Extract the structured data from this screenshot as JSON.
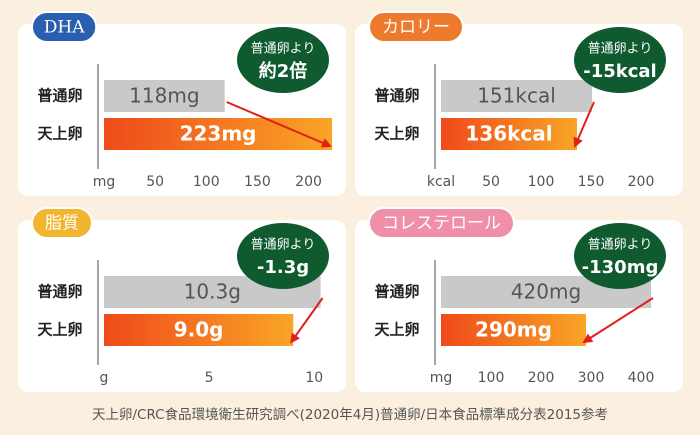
{
  "chart_data": [
    {
      "type": "bar",
      "title": "DHA",
      "title_color": "#2a5fb0",
      "categories": [
        "普通卵",
        "天上卵"
      ],
      "values": [
        118,
        223
      ],
      "value_labels": [
        "118mg",
        "223mg"
      ],
      "colors": [
        "#c9c9c9",
        "#f05a1c"
      ],
      "xlim": [
        0,
        220
      ],
      "xticks": [
        {
          "value": 0,
          "label": "mg"
        },
        50,
        100,
        150,
        200
      ],
      "badge": [
        "普通卵より",
        "約2倍"
      ]
    },
    {
      "type": "bar",
      "title": "カロリー",
      "title_color": "#ee7a2e",
      "categories": [
        "普通卵",
        "天上卵"
      ],
      "values": [
        151,
        136
      ],
      "value_labels": [
        "151kcal",
        "136kcal"
      ],
      "colors": [
        "#c9c9c9",
        "#f05a1c"
      ],
      "xlim": [
        0,
        225
      ],
      "xticks": [
        {
          "value": 0,
          "label": "kcal"
        },
        50,
        100,
        150,
        200
      ],
      "badge": [
        "普通卵より",
        "-15kcal"
      ]
    },
    {
      "type": "bar",
      "title": "脂質",
      "title_color": "#f2b530",
      "categories": [
        "普通卵",
        "天上卵"
      ],
      "values": [
        10.3,
        9.0
      ],
      "value_labels": [
        "10.3g",
        "9.0g"
      ],
      "colors": [
        "#c9c9c9",
        "#f05a1c"
      ],
      "xlim": [
        0,
        10.7
      ],
      "xticks": [
        {
          "value": 0,
          "label": "g"
        },
        5,
        10
      ],
      "badge": [
        "普通卵より",
        "-1.3g"
      ]
    },
    {
      "type": "bar",
      "title": "コレステロール",
      "title_color": "#ef8fa8",
      "categories": [
        "普通卵",
        "天上卵"
      ],
      "values": [
        420,
        290
      ],
      "value_labels": [
        "420mg",
        "290mg"
      ],
      "colors": [
        "#c9c9c9",
        "#f05a1c"
      ],
      "xlim": [
        0,
        450
      ],
      "xticks": [
        {
          "value": 0,
          "label": "mg"
        },
        100,
        200,
        300,
        400
      ],
      "badge": [
        "普通卵より",
        "-130mg"
      ]
    }
  ],
  "footnote": "天上卵/CRC食品環境衛生研究調べ(2020年4月)普通卵/日本食品標準成分表2015参考"
}
